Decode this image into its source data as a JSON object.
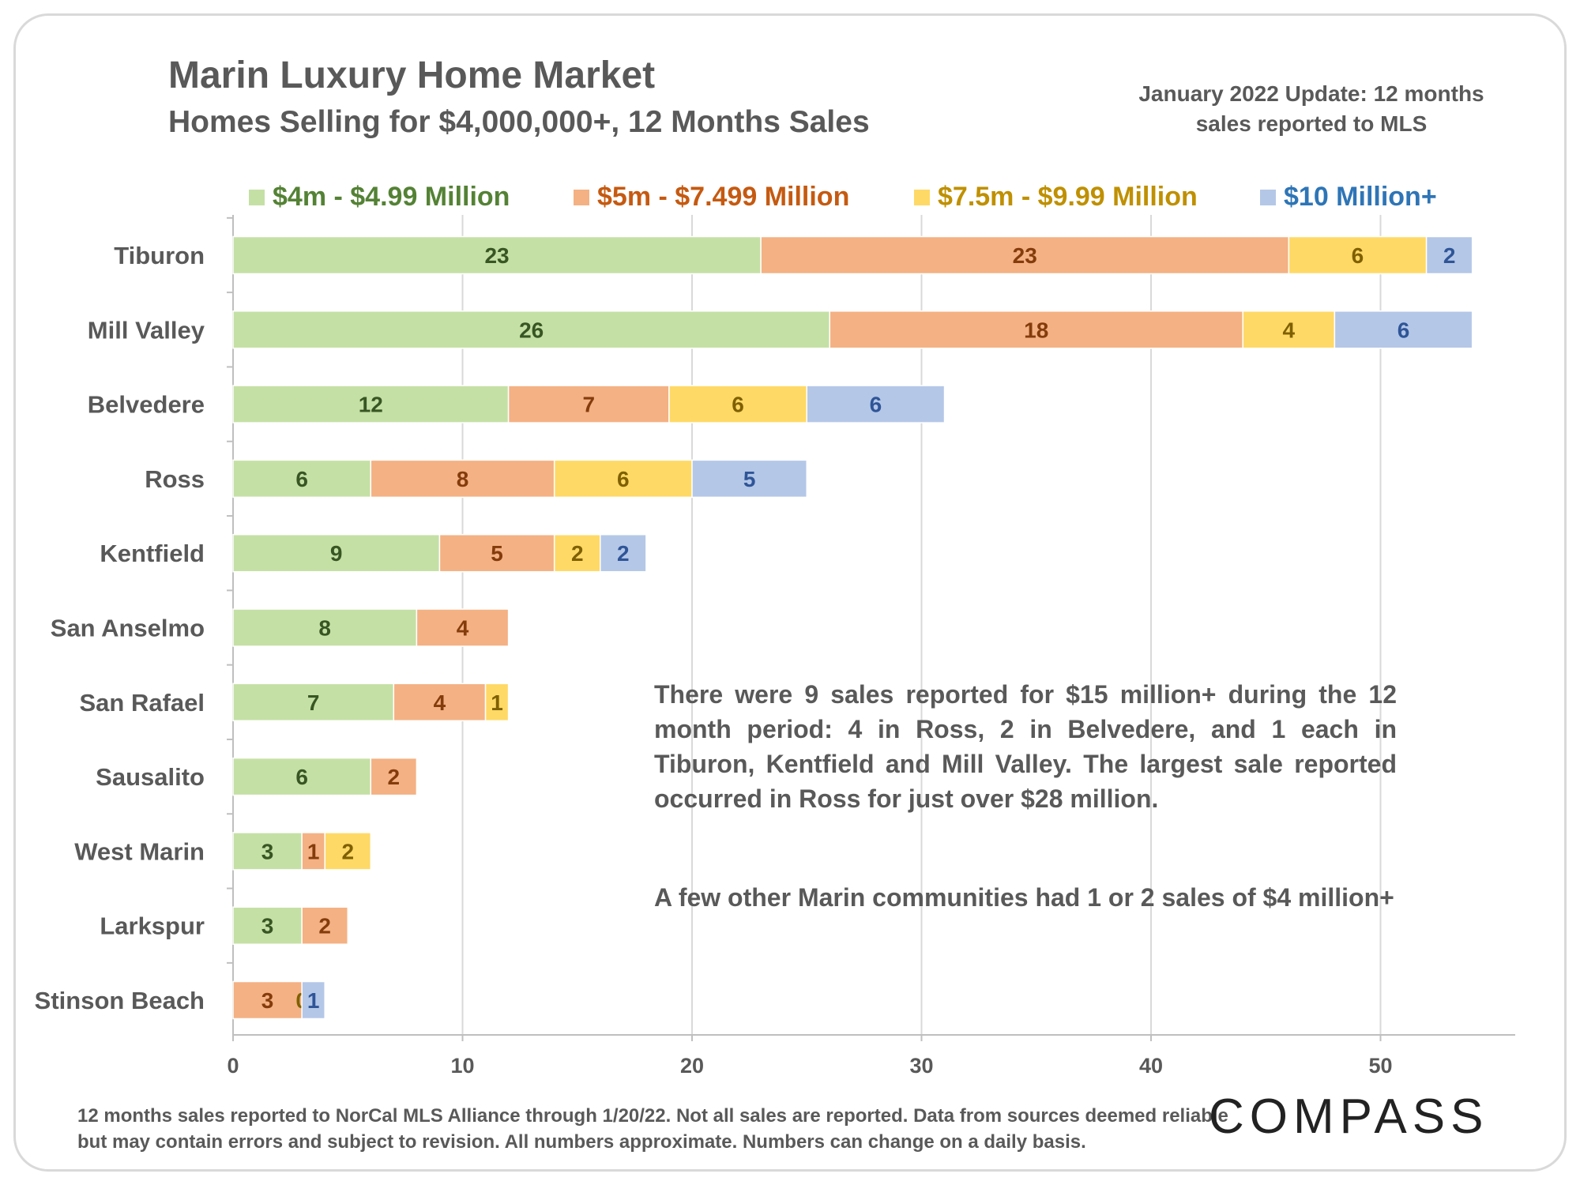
{
  "header": {
    "title": "Marin Luxury Home Market",
    "subtitle": "Homes Selling for $4,000,000+, 12 Months Sales",
    "update_note": "January 2022 Update: 12 months sales reported to MLS"
  },
  "notes": {
    "paragraph": "There were 9 sales reported for $15 million+ during the 12 month period: 4 in Ross, 2 in Belvedere, and 1 each in Tiburon, Kentfield and Mill Valley. The largest sale reported occurred in Ross for just over $28 million.",
    "secondary": "A few other Marin communities had 1 or 2 sales of $4 million+"
  },
  "footer": {
    "disclaimer": "12 months sales reported to NorCal MLS Alliance through 1/20/22. Not all sales are reported. Data from sources deemed reliable but may contain errors and subject to revision. All numbers approximate. Numbers can change on a daily basis.",
    "logo": "COMPASS"
  },
  "colors": {
    "series_fill": [
      "#c5e0a5",
      "#f4b183",
      "#ffd966",
      "#b4c7e7"
    ],
    "legend_text": [
      "#548235",
      "#c55a11",
      "#bf9000",
      "#2e75b6"
    ],
    "label_text": [
      "#375623",
      "#843c0c",
      "#7f6000",
      "#2f5597"
    ],
    "axis_text": "#595959"
  },
  "chart_data": {
    "type": "bar",
    "orientation": "horizontal",
    "stacked": true,
    "categories": [
      "Tiburon",
      "Mill Valley",
      "Belvedere",
      "Ross",
      "Kentfield",
      "San Anselmo",
      "San Rafael",
      "Sausalito",
      "West Marin",
      "Larkspur",
      "Stinson Beach"
    ],
    "series": [
      {
        "name": "$4m - $4.99 Million",
        "values": [
          23,
          26,
          12,
          6,
          9,
          8,
          7,
          6,
          3,
          3,
          0
        ]
      },
      {
        "name": "$5m - $7.499 Million",
        "values": [
          23,
          18,
          7,
          8,
          5,
          4,
          4,
          2,
          1,
          2,
          3
        ]
      },
      {
        "name": "$7.5m - $9.99 Million",
        "values": [
          6,
          4,
          6,
          6,
          2,
          0,
          1,
          0,
          2,
          0,
          0
        ]
      },
      {
        "name": "$10 Million+",
        "values": [
          2,
          6,
          6,
          5,
          2,
          0,
          0,
          0,
          0,
          0,
          1
        ]
      }
    ],
    "data_labels": [
      [
        "23",
        "23",
        "6",
        "2"
      ],
      [
        "26",
        "18",
        "4",
        "6"
      ],
      [
        "12",
        "7",
        "6",
        "6"
      ],
      [
        "6",
        "8",
        "6",
        "5"
      ],
      [
        "9",
        "5",
        "2",
        "2"
      ],
      [
        "8",
        "4",
        "",
        ""
      ],
      [
        "7",
        "4",
        "1",
        ""
      ],
      [
        "6",
        "2",
        "",
        ""
      ],
      [
        "3",
        "1",
        "2",
        ""
      ],
      [
        "3",
        "2",
        "",
        ""
      ],
      [
        "",
        "3",
        "0",
        "1"
      ]
    ],
    "xlim": [
      0,
      56
    ],
    "xticks": [
      0,
      10,
      20,
      30,
      40,
      50
    ],
    "grid": "vertical",
    "legend": "top"
  }
}
